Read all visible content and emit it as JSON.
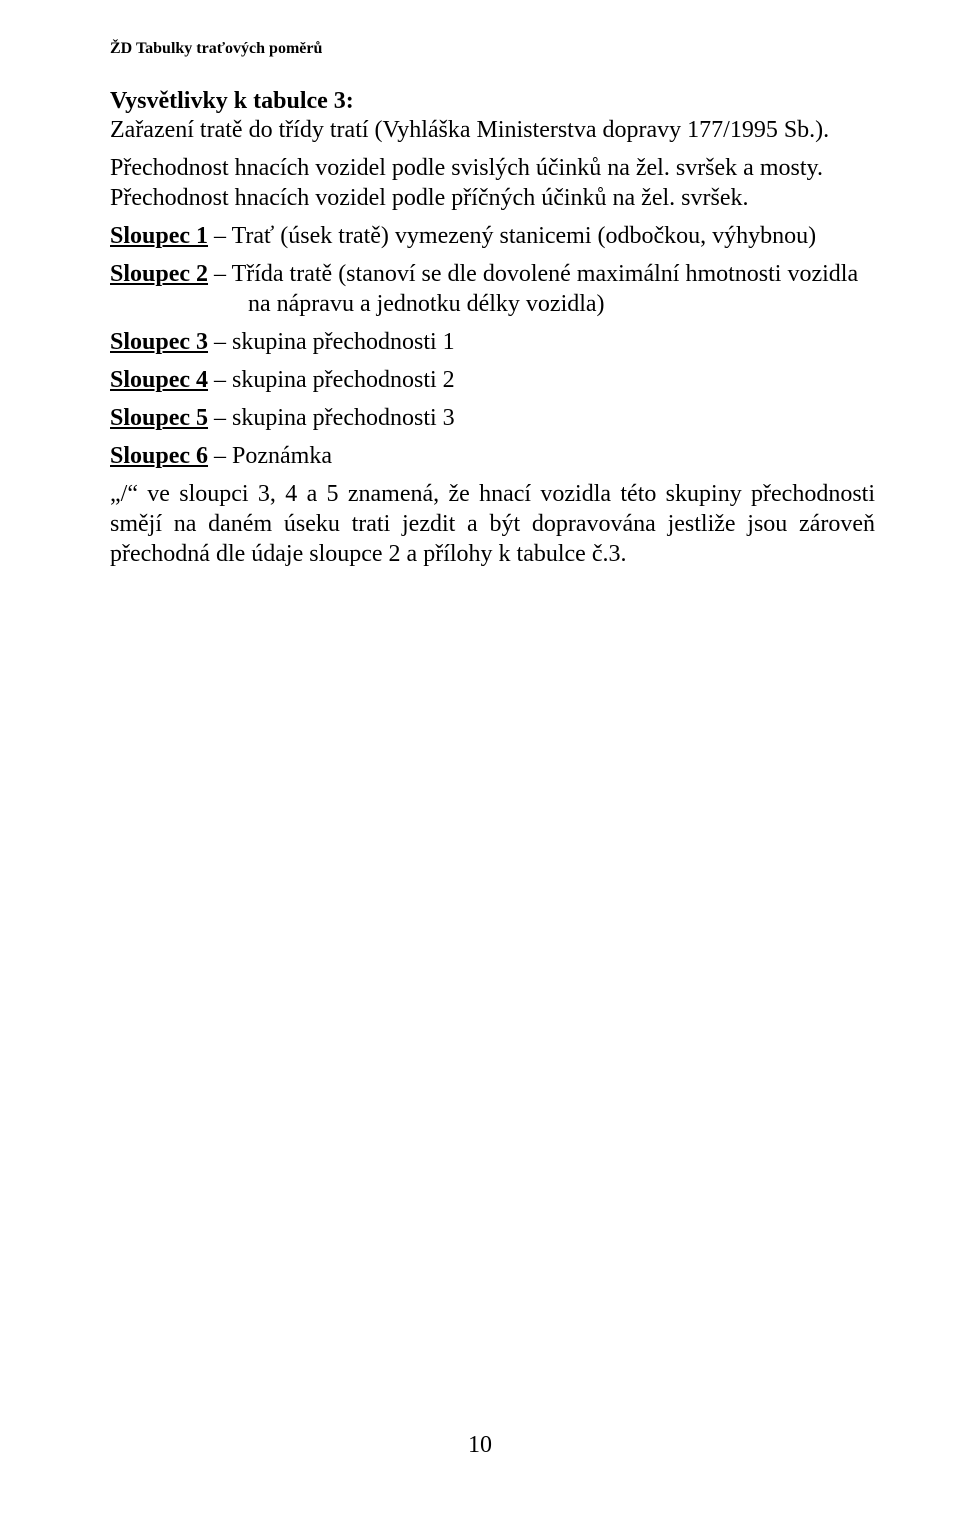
{
  "doc_header": "ŽD Tabulky traťových poměrů",
  "title": "Vysvětlivky k tabulce 3:",
  "subtitle": "Zařazení tratě do třídy tratí (Vyhláška Ministerstva dopravy 177/1995 Sb.).",
  "p1": "Přechodnost hnacích vozidel podle svislých účinků na žel. svršek a mosty.",
  "p2": "Přechodnost hnacích vozidel podle příčných účinků na žel. svršek.",
  "col1": {
    "label": "Sloupec 1",
    "text": " – Trať (úsek tratě) vymezený stanicemi (odbočkou, výhybnou)"
  },
  "col2": {
    "label": "Sloupec 2",
    "text": " – Třída tratě (stanoví se dle dovolené maximální hmotnosti vozidla na nápravu a jednotku délky vozidla)"
  },
  "col3": {
    "label": "Sloupec 3",
    "text": " – skupina přechodnosti 1"
  },
  "col4": {
    "label": "Sloupec 4",
    "text": " – skupina přechodnosti 2"
  },
  "col5": {
    "label": "Sloupec 5",
    "text": " – skupina přechodnosti 3"
  },
  "col6": {
    "label": "Sloupec 6",
    "text": " – Poznámka"
  },
  "last": "„/“ ve sloupci 3, 4 a 5 znamená, že hnací vozidla této skupiny přechodnosti smějí na daném úseku trati jezdit a být dopravována jestliže jsou zároveň přechodná dle údaje sloupce 2 a přílohy k tabulce č.3.",
  "page_number": "10"
}
